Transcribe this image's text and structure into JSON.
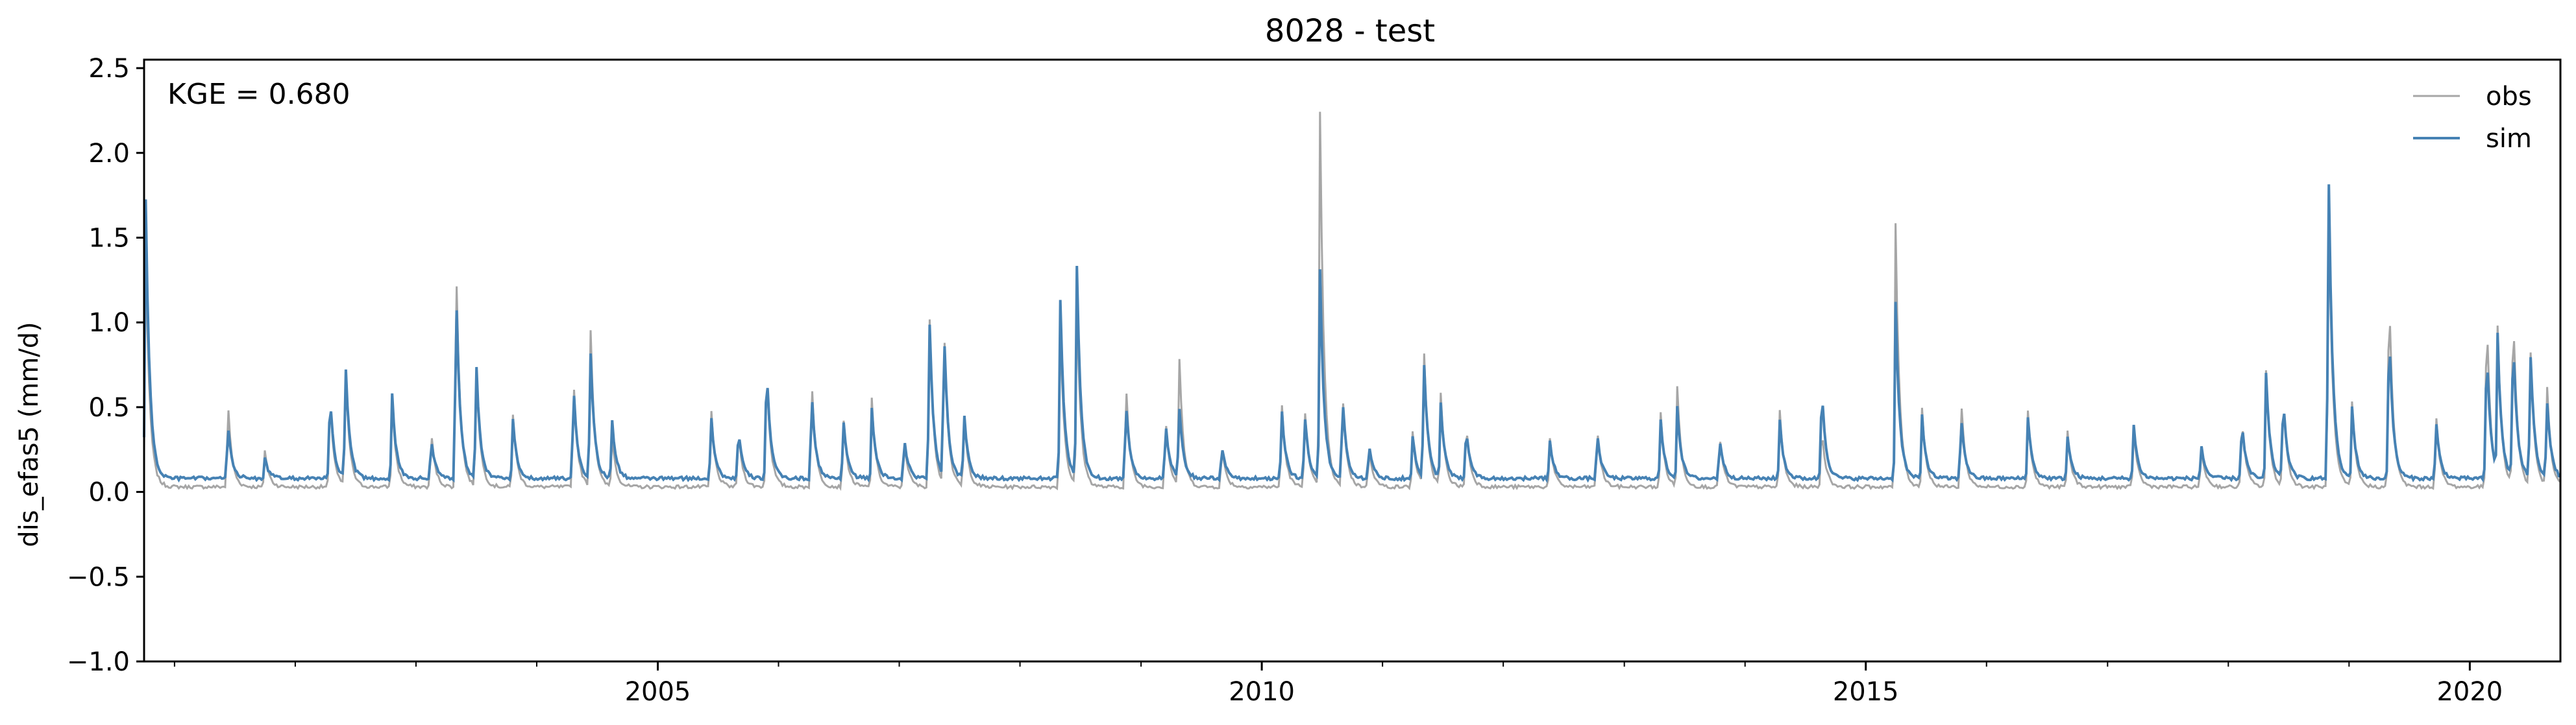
{
  "chart_data": {
    "type": "line",
    "title": "8028 - test",
    "xlabel": "",
    "ylabel": "dis_efas5 (mm/d)",
    "annotation": "KGE = 0.680",
    "xlim": [
      "2000-10-01",
      "2020-10-01"
    ],
    "ylim": [
      -1.0,
      2.55
    ],
    "yticks": [
      -1.0,
      -0.5,
      0.0,
      0.5,
      1.0,
      1.5,
      2.0,
      2.5
    ],
    "ytick_labels": [
      "−1.0",
      "−0.5",
      "0.0",
      "0.5",
      "1.0",
      "1.5",
      "2.0",
      "2.5"
    ],
    "xticks_major": [
      "2005-01-01",
      "2010-01-01",
      "2015-01-01",
      "2020-01-01"
    ],
    "xtick_labels": [
      "2005",
      "2010",
      "2015",
      "2020"
    ],
    "xticks_minor": [
      "2001-01-01",
      "2002-01-01",
      "2003-01-01",
      "2004-01-01",
      "2006-01-01",
      "2007-01-01",
      "2008-01-01",
      "2009-01-01",
      "2011-01-01",
      "2012-01-01",
      "2013-01-01",
      "2014-01-01",
      "2016-01-01",
      "2017-01-01",
      "2018-01-01",
      "2019-01-01"
    ],
    "grid": false,
    "legend_position": "top-right",
    "series": [
      {
        "name": "obs",
        "color": "#a6a6a6",
        "baseline": 0.03,
        "peaks": [
          [
            "2000-10-05",
            1.55
          ],
          [
            "2001-06-10",
            0.6
          ],
          [
            "2001-10-01",
            0.25
          ],
          [
            "2002-04-15",
            0.62
          ],
          [
            "2002-06-01",
            0.8
          ],
          [
            "2002-10-20",
            0.6
          ],
          [
            "2003-02-15",
            0.4
          ],
          [
            "2003-05-01",
            1.55
          ],
          [
            "2003-07-01",
            0.83
          ],
          [
            "2003-10-20",
            0.5
          ],
          [
            "2004-04-20",
            0.76
          ],
          [
            "2004-06-10",
            1.12
          ],
          [
            "2004-08-15",
            0.35
          ],
          [
            "2005-06-10",
            0.55
          ],
          [
            "2005-09-01",
            0.4
          ],
          [
            "2005-11-25",
            0.8
          ],
          [
            "2006-04-10",
            0.75
          ],
          [
            "2006-07-15",
            0.5
          ],
          [
            "2006-10-10",
            0.55
          ],
          [
            "2007-01-15",
            0.35
          ],
          [
            "2007-04-01",
            1.2
          ],
          [
            "2007-05-15",
            1.1
          ],
          [
            "2007-07-15",
            0.5
          ],
          [
            "2008-05-01",
            1.08
          ],
          [
            "2008-06-20",
            1.2
          ],
          [
            "2008-11-15",
            0.73
          ],
          [
            "2009-03-15",
            0.5
          ],
          [
            "2009-04-25",
            0.9
          ],
          [
            "2009-09-01",
            0.3
          ],
          [
            "2010-03-01",
            0.6
          ],
          [
            "2010-05-10",
            0.55
          ],
          [
            "2010-06-25",
            2.43
          ],
          [
            "2010-09-01",
            0.65
          ],
          [
            "2010-11-20",
            0.3
          ],
          [
            "2011-04-01",
            0.38
          ],
          [
            "2011-05-05",
            0.93
          ],
          [
            "2011-06-25",
            0.62
          ],
          [
            "2011-09-10",
            0.45
          ],
          [
            "2012-05-20",
            0.35
          ],
          [
            "2012-10-10",
            0.42
          ],
          [
            "2013-04-20",
            0.5
          ],
          [
            "2013-06-10",
            0.62
          ],
          [
            "2013-10-15",
            0.38
          ],
          [
            "2014-04-15",
            0.52
          ],
          [
            "2014-08-20",
            0.42
          ],
          [
            "2015-04-01",
            1.58
          ],
          [
            "2015-06-20",
            0.5
          ],
          [
            "2015-10-15",
            0.62
          ],
          [
            "2016-05-05",
            0.48
          ],
          [
            "2016-09-01",
            0.38
          ],
          [
            "2017-03-20",
            0.42
          ],
          [
            "2017-10-10",
            0.3
          ],
          [
            "2018-02-10",
            0.5
          ],
          [
            "2018-04-25",
            0.72
          ],
          [
            "2018-06-15",
            0.62
          ],
          [
            "2018-10-30",
            1.95
          ],
          [
            "2019-01-10",
            0.52
          ],
          [
            "2019-05-01",
            1.35
          ],
          [
            "2019-09-20",
            0.5
          ],
          [
            "2020-02-20",
            1.2
          ],
          [
            "2020-03-25",
            0.92
          ],
          [
            "2020-05-10",
            1.22
          ],
          [
            "2020-07-01",
            0.95
          ],
          [
            "2020-08-20",
            0.7
          ]
        ]
      },
      {
        "name": "sim",
        "color": "#4682b4",
        "baseline": 0.08,
        "peaks": [
          [
            "2000-10-05",
            1.87
          ],
          [
            "2001-06-10",
            0.45
          ],
          [
            "2001-10-01",
            0.2
          ],
          [
            "2002-04-15",
            0.62
          ],
          [
            "2002-06-01",
            0.82
          ],
          [
            "2002-10-20",
            0.62
          ],
          [
            "2003-02-15",
            0.35
          ],
          [
            "2003-05-01",
            1.35
          ],
          [
            "2003-07-01",
            0.85
          ],
          [
            "2003-10-20",
            0.45
          ],
          [
            "2004-04-20",
            0.7
          ],
          [
            "2004-06-10",
            0.95
          ],
          [
            "2004-08-15",
            0.45
          ],
          [
            "2005-06-10",
            0.5
          ],
          [
            "2005-09-01",
            0.4
          ],
          [
            "2005-11-25",
            0.82
          ],
          [
            "2006-04-10",
            0.65
          ],
          [
            "2006-07-15",
            0.48
          ],
          [
            "2006-10-10",
            0.5
          ],
          [
            "2007-01-15",
            0.35
          ],
          [
            "2007-04-01",
            1.15
          ],
          [
            "2007-05-15",
            1.05
          ],
          [
            "2007-07-15",
            0.5
          ],
          [
            "2008-05-01",
            1.22
          ],
          [
            "2008-06-20",
            1.42
          ],
          [
            "2008-11-15",
            0.6
          ],
          [
            "2009-03-15",
            0.45
          ],
          [
            "2009-04-25",
            0.55
          ],
          [
            "2009-09-01",
            0.3
          ],
          [
            "2010-03-01",
            0.55
          ],
          [
            "2010-05-10",
            0.5
          ],
          [
            "2010-06-25",
            1.42
          ],
          [
            "2010-09-01",
            0.62
          ],
          [
            "2010-11-20",
            0.3
          ],
          [
            "2011-04-01",
            0.35
          ],
          [
            "2011-05-05",
            0.85
          ],
          [
            "2011-06-25",
            0.55
          ],
          [
            "2011-09-10",
            0.42
          ],
          [
            "2012-05-20",
            0.32
          ],
          [
            "2012-10-10",
            0.38
          ],
          [
            "2013-04-20",
            0.45
          ],
          [
            "2013-06-10",
            0.5
          ],
          [
            "2013-10-15",
            0.35
          ],
          [
            "2014-04-15",
            0.45
          ],
          [
            "2014-08-20",
            0.68
          ],
          [
            "2015-04-01",
            1.13
          ],
          [
            "2015-06-20",
            0.45
          ],
          [
            "2015-10-15",
            0.5
          ],
          [
            "2016-05-05",
            0.45
          ],
          [
            "2016-09-01",
            0.35
          ],
          [
            "2017-03-20",
            0.42
          ],
          [
            "2017-10-10",
            0.3
          ],
          [
            "2018-02-10",
            0.45
          ],
          [
            "2018-04-25",
            0.7
          ],
          [
            "2018-06-15",
            0.6
          ],
          [
            "2018-10-30",
            2.13
          ],
          [
            "2019-01-10",
            0.5
          ],
          [
            "2019-05-01",
            1.07
          ],
          [
            "2019-09-20",
            0.45
          ],
          [
            "2020-02-20",
            0.95
          ],
          [
            "2020-03-25",
            0.88
          ],
          [
            "2020-05-10",
            1.02
          ],
          [
            "2020-07-01",
            0.92
          ],
          [
            "2020-08-20",
            0.6
          ]
        ]
      }
    ]
  }
}
